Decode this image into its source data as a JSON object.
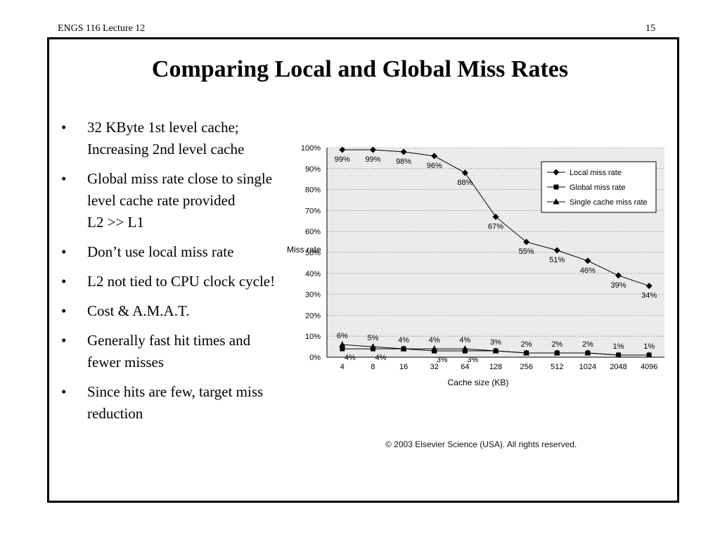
{
  "header": {
    "left": "ENGS 116  Lecture 12",
    "right": "15"
  },
  "title": "Comparing Local and Global Miss Rates",
  "bullets": [
    {
      "lines": [
        "32 KByte 1st level cache;",
        "Increasing 2nd level cache"
      ]
    },
    {
      "lines": [
        "Global miss rate close to single",
        "level cache rate provided",
        "L2 >> L1"
      ]
    },
    {
      "lines": [
        "Don’t use local miss rate"
      ]
    },
    {
      "lines": [
        "L2 not tied to CPU clock cycle!"
      ]
    },
    {
      "lines": [
        "Cost & A.M.A.T."
      ]
    },
    {
      "lines": [
        "Generally fast hit times and",
        "fewer misses"
      ]
    },
    {
      "lines": [
        "Since hits are few, target miss",
        "reduction"
      ]
    }
  ],
  "copyright": "© 2003 Elsevier Science (USA). All rights reserved.",
  "chart_data": {
    "type": "line",
    "xlabel": "Cache size (KB)",
    "ylabel": "Miss rate",
    "categories": [
      "4",
      "8",
      "16",
      "32",
      "64",
      "128",
      "256",
      "512",
      "1024",
      "2048",
      "4096"
    ],
    "yticks": [
      "0%",
      "10%",
      "20%",
      "30%",
      "40%",
      "50%",
      "60%",
      "70%",
      "80%",
      "90%",
      "100%"
    ],
    "ylim": [
      0,
      100
    ],
    "grid": true,
    "legend_position": "top-right",
    "series": [
      {
        "name": "Local miss rate",
        "marker": "diamond",
        "values": [
          99,
          99,
          98,
          96,
          88,
          67,
          55,
          51,
          46,
          39,
          34
        ],
        "labels": [
          "99%",
          "99%",
          "98%",
          "96%",
          "88%",
          "67%",
          "55%",
          "51%",
          "46%",
          "39%",
          "34%"
        ]
      },
      {
        "name": "Global miss rate",
        "marker": "square",
        "values": [
          4,
          4,
          4,
          3,
          3,
          3,
          2,
          2,
          2,
          1,
          1
        ],
        "labels": [
          "4%",
          "4%",
          "",
          "3%",
          "3%",
          "",
          "",
          "",
          "",
          "",
          ""
        ]
      },
      {
        "name": "Single cache miss rate",
        "marker": "triangle",
        "values": [
          6,
          5,
          4,
          4,
          4,
          3,
          2,
          2,
          2,
          1,
          1
        ],
        "labels": [
          "6%",
          "5%",
          "4%",
          "4%",
          "4%",
          "3%",
          "2%",
          "2%",
          "2%",
          "1%",
          "1%"
        ]
      }
    ]
  }
}
